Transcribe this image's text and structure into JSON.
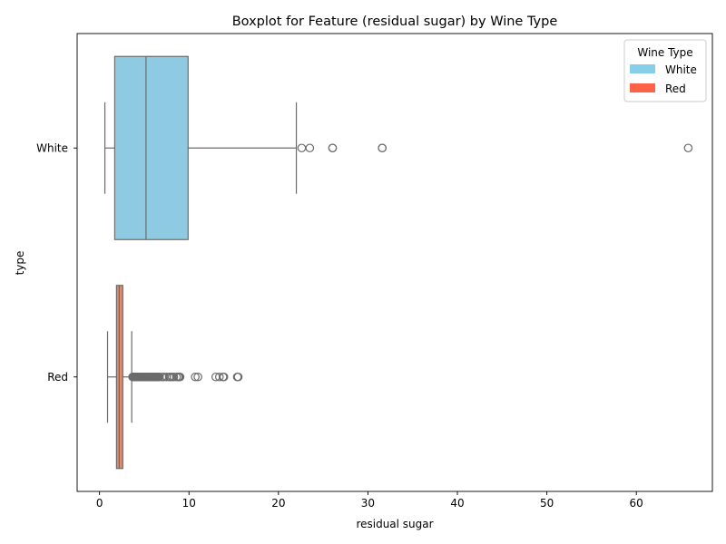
{
  "chart_data": {
    "type": "boxplot",
    "title": "Boxplot for Feature (residual sugar) by Wine Type",
    "xlabel": "residual sugar",
    "ylabel": "type",
    "xlim": [
      -2.5,
      68.5
    ],
    "xticks": [
      0,
      10,
      20,
      30,
      40,
      50,
      60
    ],
    "grid": false,
    "legend": {
      "title": "Wine Type",
      "placement": "top-right",
      "entries": [
        {
          "label": "White",
          "color": "#87CEEB"
        },
        {
          "label": "Red",
          "color": "#FF6347"
        }
      ]
    },
    "series": [
      {
        "name": "White",
        "color": "#8ECBE2",
        "whisker_low": 0.6,
        "q1": 1.7,
        "median": 5.2,
        "q3": 9.9,
        "whisker_high": 22.0,
        "outliers": [
          22.6,
          23.5,
          26.05,
          26.05,
          31.6,
          31.6,
          65.8
        ]
      },
      {
        "name": "Red",
        "color": "#DD8A6E",
        "whisker_low": 0.9,
        "q1": 1.9,
        "median": 2.2,
        "q3": 2.6,
        "whisker_high": 3.6,
        "outliers": [
          3.7,
          3.8,
          3.9,
          4.0,
          4.1,
          4.2,
          4.3,
          4.4,
          4.5,
          4.6,
          4.7,
          4.8,
          4.9,
          5.0,
          5.1,
          5.2,
          5.3,
          5.4,
          5.5,
          5.6,
          5.7,
          5.8,
          5.9,
          6.0,
          6.1,
          6.2,
          6.3,
          6.4,
          6.5,
          6.6,
          6.7,
          7.0,
          7.2,
          7.5,
          7.8,
          7.9,
          8.1,
          8.3,
          8.6,
          8.8,
          8.9,
          9.0,
          10.7,
          11.0,
          13.0,
          13.4,
          13.8,
          13.9,
          15.4,
          15.5
        ]
      }
    ]
  }
}
